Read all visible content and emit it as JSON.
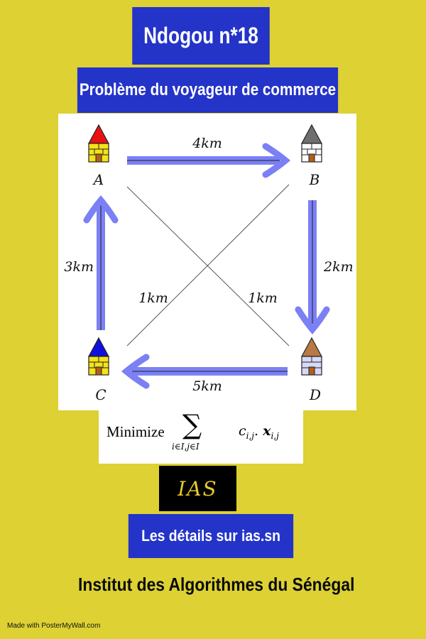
{
  "header": {
    "title": "Ndogou n*18",
    "subtitle": "Problème du voyageur de commerce"
  },
  "diagram": {
    "nodes": [
      {
        "id": "A",
        "label": "A",
        "roof_color": "#e81212"
      },
      {
        "id": "B",
        "label": "B",
        "roof_color": "#6e6e6e"
      },
      {
        "id": "C",
        "label": "C",
        "roof_color": "#1010dd"
      },
      {
        "id": "D",
        "label": "D",
        "roof_color": "#b87a44"
      }
    ],
    "edges": [
      {
        "from": "A",
        "to": "B",
        "label": "4km",
        "directed": true
      },
      {
        "from": "B",
        "to": "D",
        "label": "2km",
        "directed": true
      },
      {
        "from": "D",
        "to": "C",
        "label": "5km",
        "directed": true
      },
      {
        "from": "C",
        "to": "A",
        "label": "3km",
        "directed": true
      },
      {
        "from": "A",
        "to": "D",
        "label": "1km",
        "directed": false
      },
      {
        "from": "B",
        "to": "C",
        "label": "1km",
        "directed": false
      }
    ],
    "arrow_color": "#7b80f5"
  },
  "formula": {
    "word": "Minimize",
    "sigma": "∑",
    "subscript": "i∈I,j∈I",
    "term": "c",
    "term_sub": "i,j",
    "dot": ". ",
    "var": "x",
    "var_sub": "i,j"
  },
  "logo": {
    "text": "IAS"
  },
  "details": {
    "label": "Les détails sur ias.sn"
  },
  "institute": {
    "name": "Institut des Algorithmes du Sénégal"
  },
  "credit": {
    "text": "Made with PosterMyWall.com"
  },
  "colors": {
    "background": "#ddd134",
    "box": "#2433c8",
    "house_wall": "#f5e21a"
  }
}
